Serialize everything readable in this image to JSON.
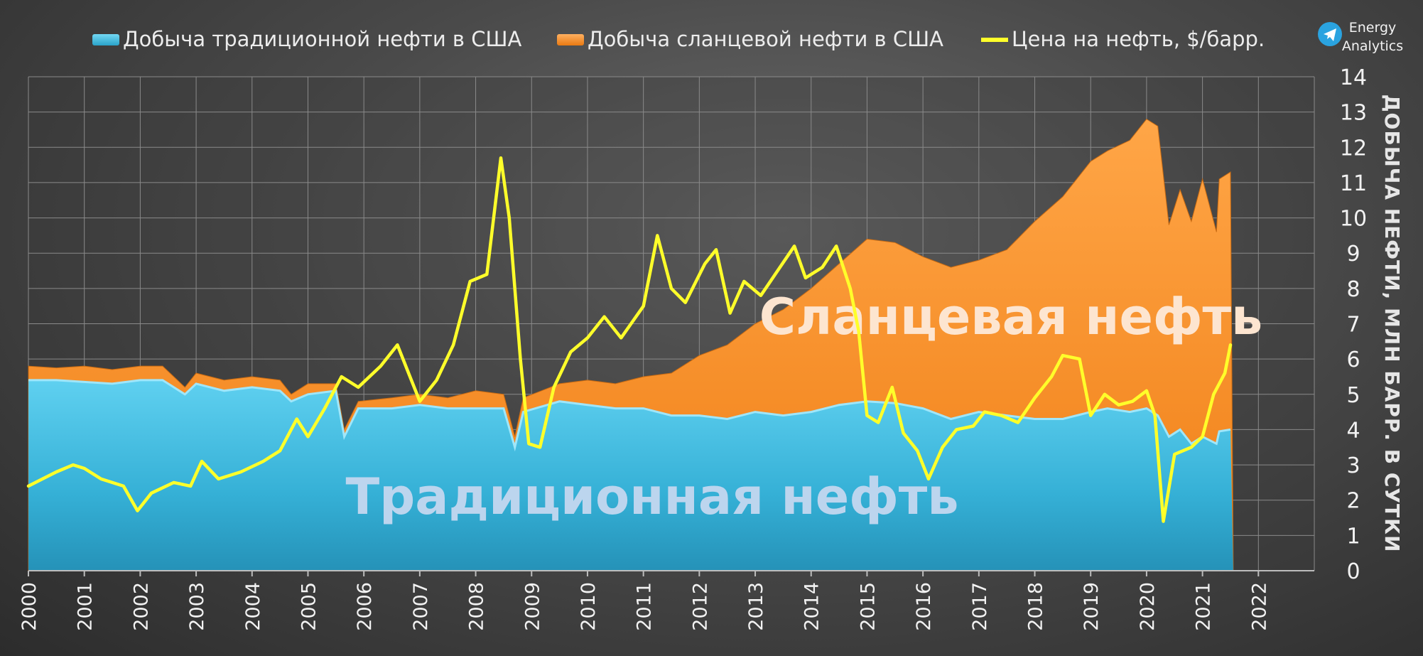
{
  "legend": {
    "conventional": "Добыча традиционной нефти в США",
    "shale": "Добыча сланцевой нефти в США",
    "price": "Цена на нефть, $/барр."
  },
  "brand": {
    "line1": "Energy",
    "line2": "Analytics",
    "icon": "telegram-icon"
  },
  "colors": {
    "conventional": "#3cb8dc",
    "shale": "#f58a1f",
    "price": "#ffff2a",
    "conventional_label": "#bcd5ee",
    "shale_label": "#fde5d0"
  },
  "chart_data": {
    "type": "area",
    "ylabel": "ДОБЫЧА НЕФТИ, МЛН БАРР. В СУТКИ",
    "ylim": [
      0,
      14
    ],
    "yticks": [
      "0",
      "1",
      "2",
      "3",
      "4",
      "5",
      "6",
      "7",
      "8",
      "9",
      "10",
      "11",
      "12",
      "13",
      "14"
    ],
    "xlim": [
      2000,
      2023
    ],
    "xticks": [
      "2000",
      "2001",
      "2002",
      "2003",
      "2004",
      "2005",
      "2006",
      "2007",
      "2008",
      "2009",
      "2010",
      "2011",
      "2012",
      "2013",
      "2014",
      "2015",
      "2016",
      "2017",
      "2018",
      "2019",
      "2020",
      "2021",
      "2022"
    ],
    "grid": true,
    "legend_position": "top",
    "region_labels": {
      "conventional": "Традиционная нефть",
      "shale": "Сланцевая нефть"
    },
    "series": [
      {
        "name": "Добыча традиционной нефти в США",
        "type": "area",
        "points": [
          [
            2000,
            5.4
          ],
          [
            2000.5,
            5.4
          ],
          [
            2001,
            5.35
          ],
          [
            2001.5,
            5.3
          ],
          [
            2002,
            5.4
          ],
          [
            2002.4,
            5.4
          ],
          [
            2002.8,
            5.0
          ],
          [
            2003,
            5.3
          ],
          [
            2003.5,
            5.1
          ],
          [
            2004,
            5.2
          ],
          [
            2004.5,
            5.1
          ],
          [
            2004.7,
            4.8
          ],
          [
            2005,
            5.0
          ],
          [
            2005.5,
            5.1
          ],
          [
            2005.65,
            3.8
          ],
          [
            2005.9,
            4.6
          ],
          [
            2006.5,
            4.6
          ],
          [
            2007,
            4.7
          ],
          [
            2007.5,
            4.6
          ],
          [
            2008,
            4.6
          ],
          [
            2008.5,
            4.6
          ],
          [
            2008.7,
            3.5
          ],
          [
            2008.85,
            4.5
          ],
          [
            2009.5,
            4.8
          ],
          [
            2010,
            4.7
          ],
          [
            2010.5,
            4.6
          ],
          [
            2011,
            4.6
          ],
          [
            2011.5,
            4.4
          ],
          [
            2012,
            4.4
          ],
          [
            2012.5,
            4.3
          ],
          [
            2013,
            4.5
          ],
          [
            2013.5,
            4.4
          ],
          [
            2014,
            4.5
          ],
          [
            2014.5,
            4.7
          ],
          [
            2015,
            4.8
          ],
          [
            2015.5,
            4.75
          ],
          [
            2016,
            4.6
          ],
          [
            2016.5,
            4.3
          ],
          [
            2017,
            4.5
          ],
          [
            2017.5,
            4.4
          ],
          [
            2018,
            4.3
          ],
          [
            2018.5,
            4.3
          ],
          [
            2019,
            4.5
          ],
          [
            2019.3,
            4.6
          ],
          [
            2019.7,
            4.5
          ],
          [
            2020,
            4.6
          ],
          [
            2020.2,
            4.4
          ],
          [
            2020.4,
            3.8
          ],
          [
            2020.6,
            4.0
          ],
          [
            2020.8,
            3.6
          ],
          [
            2021,
            3.8
          ],
          [
            2021.25,
            3.6
          ],
          [
            2021.3,
            3.95
          ],
          [
            2021.5,
            4.0
          ],
          [
            2021.55,
            0
          ]
        ]
      },
      {
        "name": "Добыча сланцевой нефти в США",
        "type": "stacked-area",
        "points": [
          [
            2000,
            5.8
          ],
          [
            2000.5,
            5.75
          ],
          [
            2001,
            5.8
          ],
          [
            2001.5,
            5.7
          ],
          [
            2002,
            5.8
          ],
          [
            2002.4,
            5.8
          ],
          [
            2002.8,
            5.2
          ],
          [
            2003,
            5.6
          ],
          [
            2003.5,
            5.4
          ],
          [
            2004,
            5.5
          ],
          [
            2004.5,
            5.4
          ],
          [
            2004.7,
            5.0
          ],
          [
            2005,
            5.3
          ],
          [
            2005.5,
            5.3
          ],
          [
            2005.65,
            4.0
          ],
          [
            2005.9,
            4.8
          ],
          [
            2006.5,
            4.9
          ],
          [
            2007,
            5.0
          ],
          [
            2007.5,
            4.9
          ],
          [
            2008,
            5.1
          ],
          [
            2008.5,
            5.0
          ],
          [
            2008.7,
            3.8
          ],
          [
            2008.85,
            4.9
          ],
          [
            2009.5,
            5.3
          ],
          [
            2010,
            5.4
          ],
          [
            2010.5,
            5.3
          ],
          [
            2011,
            5.5
          ],
          [
            2011.5,
            5.6
          ],
          [
            2012,
            6.1
          ],
          [
            2012.5,
            6.4
          ],
          [
            2013,
            7.0
          ],
          [
            2013.5,
            7.4
          ],
          [
            2014,
            8.0
          ],
          [
            2014.5,
            8.7
          ],
          [
            2015,
            9.4
          ],
          [
            2015.5,
            9.3
          ],
          [
            2016,
            8.9
          ],
          [
            2016.5,
            8.6
          ],
          [
            2017,
            8.8
          ],
          [
            2017.5,
            9.1
          ],
          [
            2018,
            9.9
          ],
          [
            2018.5,
            10.6
          ],
          [
            2019,
            11.6
          ],
          [
            2019.3,
            11.9
          ],
          [
            2019.7,
            12.2
          ],
          [
            2020,
            12.8
          ],
          [
            2020.2,
            12.6
          ],
          [
            2020.4,
            9.8
          ],
          [
            2020.6,
            10.8
          ],
          [
            2020.8,
            9.9
          ],
          [
            2021,
            11.1
          ],
          [
            2021.25,
            9.6
          ],
          [
            2021.3,
            11.1
          ],
          [
            2021.5,
            11.3
          ],
          [
            2021.55,
            0
          ]
        ]
      },
      {
        "name": "Цена на нефть, $/барр.",
        "type": "line",
        "points": [
          [
            2000,
            2.4
          ],
          [
            2000.25,
            2.6
          ],
          [
            2000.5,
            2.8
          ],
          [
            2000.8,
            3.0
          ],
          [
            2001,
            2.9
          ],
          [
            2001.3,
            2.6
          ],
          [
            2001.7,
            2.4
          ],
          [
            2001.95,
            1.7
          ],
          [
            2002.2,
            2.2
          ],
          [
            2002.6,
            2.5
          ],
          [
            2002.9,
            2.4
          ],
          [
            2003.1,
            3.1
          ],
          [
            2003.4,
            2.6
          ],
          [
            2003.8,
            2.8
          ],
          [
            2004.2,
            3.1
          ],
          [
            2004.5,
            3.4
          ],
          [
            2004.8,
            4.3
          ],
          [
            2005,
            3.8
          ],
          [
            2005.3,
            4.6
          ],
          [
            2005.6,
            5.5
          ],
          [
            2005.9,
            5.2
          ],
          [
            2006.3,
            5.8
          ],
          [
            2006.6,
            6.4
          ],
          [
            2006.8,
            5.6
          ],
          [
            2007,
            4.8
          ],
          [
            2007.3,
            5.4
          ],
          [
            2007.6,
            6.4
          ],
          [
            2007.9,
            8.2
          ],
          [
            2008.2,
            8.4
          ],
          [
            2008.45,
            11.7
          ],
          [
            2008.6,
            10.0
          ],
          [
            2008.8,
            6.0
          ],
          [
            2008.95,
            3.6
          ],
          [
            2009.15,
            3.5
          ],
          [
            2009.4,
            5.2
          ],
          [
            2009.7,
            6.2
          ],
          [
            2010,
            6.6
          ],
          [
            2010.3,
            7.2
          ],
          [
            2010.6,
            6.6
          ],
          [
            2011,
            7.5
          ],
          [
            2011.25,
            9.5
          ],
          [
            2011.5,
            8.0
          ],
          [
            2011.75,
            7.6
          ],
          [
            2012.1,
            8.7
          ],
          [
            2012.3,
            9.1
          ],
          [
            2012.55,
            7.3
          ],
          [
            2012.8,
            8.2
          ],
          [
            2013.1,
            7.8
          ],
          [
            2013.4,
            8.5
          ],
          [
            2013.7,
            9.2
          ],
          [
            2013.9,
            8.3
          ],
          [
            2014.2,
            8.6
          ],
          [
            2014.45,
            9.2
          ],
          [
            2014.7,
            8.0
          ],
          [
            2014.85,
            6.8
          ],
          [
            2015.0,
            4.4
          ],
          [
            2015.2,
            4.2
          ],
          [
            2015.45,
            5.2
          ],
          [
            2015.65,
            3.9
          ],
          [
            2015.9,
            3.4
          ],
          [
            2016.1,
            2.6
          ],
          [
            2016.35,
            3.5
          ],
          [
            2016.6,
            4.0
          ],
          [
            2016.9,
            4.1
          ],
          [
            2017.1,
            4.5
          ],
          [
            2017.4,
            4.4
          ],
          [
            2017.7,
            4.2
          ],
          [
            2018,
            4.9
          ],
          [
            2018.3,
            5.5
          ],
          [
            2018.5,
            6.1
          ],
          [
            2018.8,
            6.0
          ],
          [
            2019,
            4.4
          ],
          [
            2019.25,
            5.0
          ],
          [
            2019.5,
            4.7
          ],
          [
            2019.75,
            4.8
          ],
          [
            2020.0,
            5.1
          ],
          [
            2020.15,
            4.4
          ],
          [
            2020.3,
            1.4
          ],
          [
            2020.5,
            3.3
          ],
          [
            2020.8,
            3.5
          ],
          [
            2021.0,
            3.8
          ],
          [
            2021.2,
            5.0
          ],
          [
            2021.4,
            5.6
          ],
          [
            2021.5,
            6.4
          ]
        ]
      }
    ]
  }
}
